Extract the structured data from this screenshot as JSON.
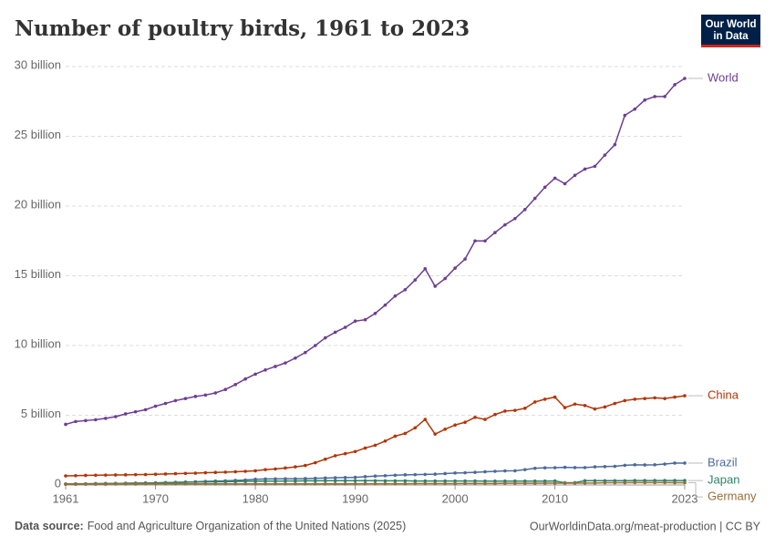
{
  "chart_data": {
    "type": "line",
    "title": "Number of poultry birds, 1961 to 2023",
    "logo_lines": [
      "Our World",
      "in Data"
    ],
    "source_label": "Data source:",
    "source": "Food and Agriculture Organization of the United Nations (2025)",
    "credit": "OurWorldinData.org/meat-production | CC BY",
    "x": [
      1961,
      1962,
      1963,
      1964,
      1965,
      1966,
      1967,
      1968,
      1969,
      1970,
      1971,
      1972,
      1973,
      1974,
      1975,
      1976,
      1977,
      1978,
      1979,
      1980,
      1981,
      1982,
      1983,
      1984,
      1985,
      1986,
      1987,
      1988,
      1989,
      1990,
      1991,
      1992,
      1993,
      1994,
      1995,
      1996,
      1997,
      1998,
      1999,
      2000,
      2001,
      2002,
      2003,
      2004,
      2005,
      2006,
      2007,
      2008,
      2009,
      2010,
      2011,
      2012,
      2013,
      2014,
      2015,
      2016,
      2017,
      2018,
      2019,
      2020,
      2021,
      2022,
      2023
    ],
    "xlim": [
      1960.5,
      2024.4
    ],
    "xticks": [
      1961,
      1970,
      1980,
      1990,
      2000,
      2010,
      2023
    ],
    "ylim": [
      0,
      30
    ],
    "yticks": [
      0,
      {
        "value": 5,
        "label": "5 billion"
      },
      {
        "value": 10,
        "label": "10 billion"
      },
      {
        "value": 15,
        "label": "15 billion"
      },
      {
        "value": 20,
        "label": "20 billion"
      },
      {
        "value": 25,
        "label": "25 billion"
      },
      {
        "value": 30,
        "label": "30 billion"
      }
    ],
    "grid": true,
    "series": [
      {
        "name": "World",
        "color": "#6d3e91",
        "values": [
          4.35,
          4.55,
          4.62,
          4.68,
          4.78,
          4.9,
          5.1,
          5.25,
          5.4,
          5.65,
          5.85,
          6.05,
          6.2,
          6.35,
          6.45,
          6.6,
          6.85,
          7.2,
          7.6,
          7.95,
          8.25,
          8.5,
          8.75,
          9.1,
          9.5,
          10.0,
          10.55,
          10.95,
          11.3,
          11.75,
          11.85,
          12.3,
          12.9,
          13.55,
          14.0,
          14.7,
          15.5,
          14.25,
          14.8,
          15.55,
          16.2,
          17.5,
          17.5,
          18.1,
          18.65,
          19.1,
          19.75,
          20.55,
          21.35,
          22.0,
          21.6,
          22.2,
          22.65,
          22.85,
          23.65,
          24.4,
          26.5,
          26.95,
          27.6,
          27.85,
          27.85,
          28.7,
          29.15
        ]
      },
      {
        "name": "China",
        "color": "#b13507",
        "values": [
          0.65,
          0.67,
          0.69,
          0.7,
          0.71,
          0.72,
          0.73,
          0.74,
          0.75,
          0.77,
          0.79,
          0.81,
          0.83,
          0.85,
          0.88,
          0.9,
          0.92,
          0.95,
          0.98,
          1.02,
          1.1,
          1.15,
          1.22,
          1.3,
          1.4,
          1.6,
          1.85,
          2.1,
          2.25,
          2.4,
          2.65,
          2.85,
          3.15,
          3.5,
          3.7,
          4.1,
          4.7,
          3.65,
          4.0,
          4.3,
          4.5,
          4.85,
          4.7,
          5.05,
          5.3,
          5.35,
          5.5,
          5.95,
          6.15,
          6.3,
          5.55,
          5.8,
          5.7,
          5.45,
          5.6,
          5.85,
          6.05,
          6.15,
          6.2,
          6.25,
          6.2,
          6.3,
          6.4
        ]
      },
      {
        "name": "Brazil",
        "color": "#4c6a9c",
        "values": [
          0.08,
          0.09,
          0.09,
          0.1,
          0.11,
          0.11,
          0.12,
          0.13,
          0.14,
          0.15,
          0.17,
          0.19,
          0.21,
          0.23,
          0.26,
          0.28,
          0.3,
          0.33,
          0.36,
          0.41,
          0.43,
          0.44,
          0.45,
          0.45,
          0.46,
          0.48,
          0.5,
          0.52,
          0.54,
          0.55,
          0.6,
          0.64,
          0.67,
          0.7,
          0.73,
          0.74,
          0.76,
          0.78,
          0.82,
          0.86,
          0.88,
          0.91,
          0.95,
          0.98,
          1.01,
          1.02,
          1.1,
          1.2,
          1.23,
          1.24,
          1.27,
          1.25,
          1.25,
          1.3,
          1.32,
          1.34,
          1.41,
          1.45,
          1.44,
          1.45,
          1.5,
          1.57,
          1.57
        ]
      },
      {
        "name": "Japan",
        "color": "#2c8465",
        "values": [
          0.06,
          0.07,
          0.08,
          0.09,
          0.1,
          0.11,
          0.12,
          0.13,
          0.14,
          0.15,
          0.17,
          0.18,
          0.2,
          0.21,
          0.22,
          0.23,
          0.24,
          0.25,
          0.26,
          0.27,
          0.28,
          0.28,
          0.29,
          0.29,
          0.3,
          0.3,
          0.31,
          0.31,
          0.31,
          0.31,
          0.31,
          0.31,
          0.3,
          0.3,
          0.3,
          0.29,
          0.29,
          0.29,
          0.29,
          0.29,
          0.29,
          0.29,
          0.28,
          0.28,
          0.28,
          0.28,
          0.28,
          0.28,
          0.28,
          0.29,
          0.16,
          0.17,
          0.31,
          0.31,
          0.31,
          0.31,
          0.31,
          0.32,
          0.32,
          0.32,
          0.32,
          0.32,
          0.32
        ]
      },
      {
        "name": "Germany",
        "color": "#996d39",
        "values": [
          0.05,
          0.05,
          0.06,
          0.06,
          0.06,
          0.07,
          0.07,
          0.07,
          0.08,
          0.08,
          0.08,
          0.08,
          0.08,
          0.08,
          0.08,
          0.08,
          0.08,
          0.08,
          0.08,
          0.08,
          0.08,
          0.08,
          0.08,
          0.08,
          0.08,
          0.08,
          0.08,
          0.08,
          0.08,
          0.08,
          0.09,
          0.09,
          0.09,
          0.09,
          0.09,
          0.1,
          0.1,
          0.1,
          0.1,
          0.1,
          0.11,
          0.11,
          0.11,
          0.11,
          0.12,
          0.12,
          0.12,
          0.12,
          0.13,
          0.13,
          0.13,
          0.13,
          0.14,
          0.14,
          0.16,
          0.16,
          0.16,
          0.17,
          0.17,
          0.17,
          0.17,
          0.16,
          0.16
        ]
      }
    ]
  }
}
